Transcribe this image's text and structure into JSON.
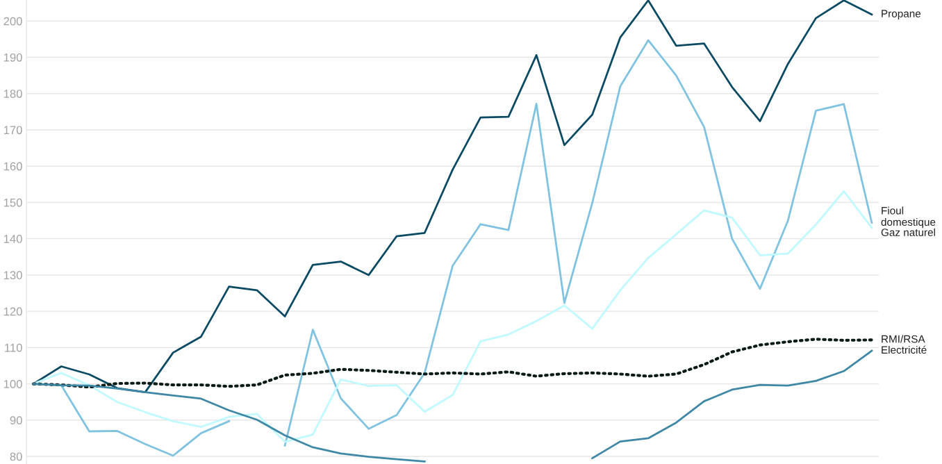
{
  "chart_data": {
    "type": "line",
    "categories": [
      null,
      null,
      null,
      null,
      null,
      null,
      null,
      null,
      null,
      null,
      null,
      null,
      null,
      null,
      null,
      null,
      null,
      null,
      null,
      null,
      null,
      null,
      null,
      null,
      null,
      null,
      null,
      null,
      null,
      null,
      null
    ],
    "ylim": [
      77.9,
      205.8
    ],
    "yticks": [
      80,
      90,
      100,
      110,
      120,
      130,
      140,
      150,
      160,
      170,
      180,
      190,
      200
    ],
    "grid": "y",
    "legend": false,
    "tick_labels": "y",
    "series": [
      {
        "name": "Propane",
        "color": "#0b4a63",
        "line_style": "solid",
        "values": [
          100,
          104.8,
          102.6,
          98.8,
          97.7,
          108.6,
          113,
          126.8,
          125.8,
          118.6,
          132.8,
          133.7,
          130,
          140.7,
          141.6,
          159,
          173.4,
          173.6,
          190.6,
          165.8,
          174.2,
          195.5,
          205.7,
          193.2,
          193.8,
          181.8,
          172.4,
          188.2,
          200.8,
          205.7,
          201.8
        ]
      },
      {
        "name": "Fioul domestique",
        "color": "#7fc3e0",
        "line_style": "solid",
        "values": [
          100,
          99.6,
          86.9,
          87,
          83.4,
          80.2,
          86.4,
          89.7,
          null,
          83,
          114.9,
          96,
          87.6,
          91.4,
          103,
          132.5,
          144,
          142.4,
          177.2,
          122.3,
          149.9,
          182,
          194.7,
          185,
          170.8,
          140,
          126.2,
          145,
          175.3,
          177.1,
          144.4
        ]
      },
      {
        "name": "Gaz naturel",
        "color": "#c0f9ff",
        "line_style": "solid",
        "values": [
          100,
          103,
          99.6,
          95,
          92.2,
          89.7,
          88.1,
          90.9,
          91.7,
          84,
          86,
          101.2,
          99.4,
          99.6,
          92.3,
          96.9,
          111.7,
          113.6,
          117.3,
          121.6,
          115.2,
          125.8,
          134.7,
          141.2,
          147.8,
          145.8,
          135.4,
          135.9,
          143.9,
          153.1,
          143
        ]
      },
      {
        "name": "RMI/RSA",
        "color": "#0a1a14",
        "line_style": "dotted",
        "values": [
          100,
          99.7,
          99.1,
          100.1,
          100.2,
          99.7,
          99.7,
          99.3,
          99.7,
          102.4,
          102.9,
          104,
          103.7,
          103.2,
          102.7,
          103,
          102.7,
          103.3,
          102.1,
          102.8,
          103,
          102.7,
          102.1,
          102.7,
          105.3,
          108.8,
          110.7,
          111.6,
          112.3,
          112,
          112.1
        ]
      },
      {
        "name": "Electricité",
        "color": "#3e88a5",
        "line_style": "solid",
        "values": [
          100,
          99.6,
          99.5,
          98.7,
          97.7,
          96.8,
          95.9,
          92.7,
          90.1,
          85.8,
          82.5,
          80.8,
          79.9,
          79.2,
          78.6,
          null,
          null,
          null,
          null,
          null,
          79.5,
          84.1,
          85,
          89.3,
          95.2,
          98.4,
          99.7,
          99.5,
          100.8,
          103.5,
          109.1
        ]
      }
    ]
  }
}
